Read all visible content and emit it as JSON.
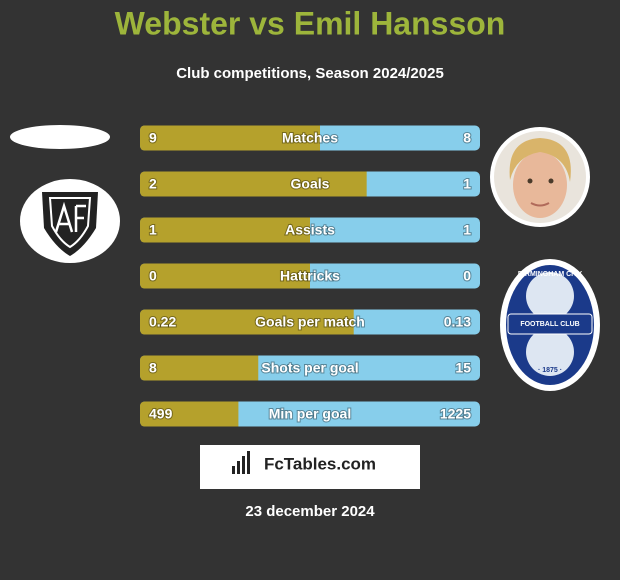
{
  "title": "Webster vs Emil Hansson",
  "subtitle": "Club competitions, Season 2024/2025",
  "rows": [
    {
      "label": "Matches",
      "left": 9,
      "right": 8
    },
    {
      "label": "Goals",
      "left": 2,
      "right": 1
    },
    {
      "label": "Assists",
      "left": 1,
      "right": 1
    },
    {
      "label": "Hattricks",
      "left": 0,
      "right": 0
    },
    {
      "label": "Goals per match",
      "left": 0.22,
      "right": 0.13
    },
    {
      "label": "Shots per goal",
      "left": 8,
      "right": 15
    },
    {
      "label": "Min per goal",
      "left": 499,
      "right": 1225
    }
  ],
  "right_badge": {
    "top": "BIRMINGHAM CITY",
    "middle": "FOOTBALL CLUB",
    "bottom": "· 1875 ·"
  },
  "brand": "FcTables.com",
  "date": "23 december 2024"
}
